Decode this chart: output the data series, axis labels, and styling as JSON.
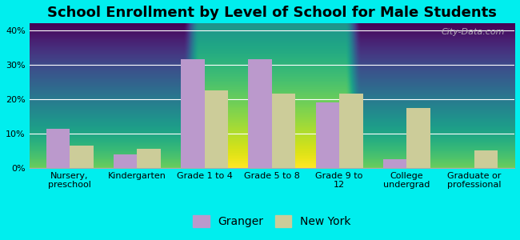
{
  "title": "School Enrollment by Level of School for Male Students",
  "categories": [
    "Nursery,\npreschool",
    "Kindergarten",
    "Grade 1 to 4",
    "Grade 5 to 8",
    "Grade 9 to\n12",
    "College\nundergrad",
    "Graduate or\nprofessional"
  ],
  "granger_values": [
    11.5,
    4.0,
    31.5,
    31.5,
    19.0,
    2.5,
    0
  ],
  "newyork_values": [
    6.5,
    5.5,
    22.5,
    21.5,
    21.5,
    17.5,
    5.0
  ],
  "granger_color": "#bb99cc",
  "newyork_color": "#cccc99",
  "background_color": "#00eeee",
  "plot_bg_top": "#e0f0e0",
  "plot_bg_bottom": "#f8fff8",
  "ylim": [
    0,
    42
  ],
  "yticks": [
    0,
    10,
    20,
    30,
    40
  ],
  "ylabel_format": "{}%",
  "legend_labels": [
    "Granger",
    "New York"
  ],
  "bar_width": 0.35,
  "title_fontsize": 13,
  "tick_fontsize": 8,
  "legend_fontsize": 10,
  "watermark_text": "City-Data.com"
}
